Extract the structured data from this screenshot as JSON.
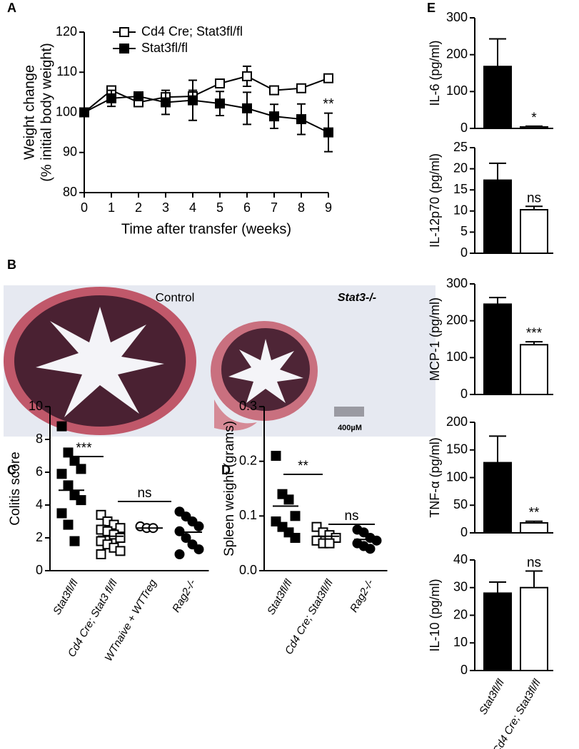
{
  "panel_labels": [
    "A",
    "B",
    "C",
    "D",
    "E"
  ],
  "image": {
    "labels": [
      "Control",
      "Stat3-/-"
    ],
    "scale_bar": "400µM"
  },
  "chart_data": [
    {
      "type": "line",
      "xlabel": "Time after transfer (weeks)",
      "ylabel": [
        "Weight change",
        "(% initial body weight)"
      ],
      "x": [
        0,
        1,
        2,
        3,
        4,
        5,
        6,
        7,
        8,
        9
      ],
      "xlim": [
        0,
        9
      ],
      "xticks": [
        0,
        1,
        2,
        3,
        4,
        5,
        6,
        7,
        8,
        9
      ],
      "ylim": [
        80,
        120
      ],
      "yticks": [
        80,
        90,
        100,
        110,
        120
      ],
      "legend": "upper left",
      "series": [
        {
          "name": "Cd4 Cre; Stat3fl/fl",
          "color": "#000000",
          "marker": "square-open",
          "values": [
            100,
            105.5,
            102.5,
            103.8,
            104,
            107.2,
            109,
            105.5,
            106,
            108.5
          ],
          "errors": [
            0,
            1,
            1,
            1,
            1.5,
            1,
            2.5,
            1,
            0.5,
            1
          ]
        },
        {
          "name": "Stat3fl/fl",
          "color": "#000000",
          "marker": "square-filled",
          "values": [
            100,
            103.5,
            104,
            102.5,
            103,
            102.2,
            101,
            99,
            98.3,
            95
          ],
          "errors": [
            0,
            2,
            1,
            3,
            5,
            3,
            4,
            3,
            3.8,
            4.8
          ]
        }
      ],
      "annotation": "**"
    },
    {
      "type": "dot",
      "ylabel": "Colitis score",
      "categories": [
        "Stat3fl/fl",
        "Cd4 Cre; Stat3 fl/fl",
        "WTnaive + WTTreg",
        "Rag2-/-"
      ],
      "values": [
        [
          8.8,
          7.2,
          6.7,
          6.2,
          5.9,
          5.2,
          4.6,
          4.3,
          3.5,
          2.8,
          1.8
        ],
        [
          3.4,
          3.0,
          2.8,
          2.6,
          2.5,
          2.4,
          2.2,
          2.0,
          1.8,
          1.6,
          1.4,
          1.2,
          1.0
        ],
        [
          2.7,
          2.6,
          2.6
        ],
        [
          3.6,
          3.3,
          3.0,
          2.7,
          2.4,
          2.0,
          1.6,
          1.3,
          1.0
        ]
      ],
      "means": [
        4.9,
        2.1,
        2.6,
        2.35
      ],
      "markers": [
        "square-filled",
        "square-open",
        "circle-open",
        "circle-filled"
      ],
      "ylim": [
        0,
        10
      ],
      "yticks": [
        0,
        2,
        4,
        6,
        8,
        10
      ],
      "annotations": [
        "***",
        "ns"
      ]
    },
    {
      "type": "dot",
      "ylabel": "Spleen weight (grams)",
      "categories": [
        "Stat3fl/fl",
        "Cd4 Cre; Stat3fl/fl",
        "Rag2-/-"
      ],
      "values": [
        [
          0.21,
          0.14,
          0.13,
          0.1,
          0.09,
          0.08,
          0.07,
          0.06
        ],
        [
          0.08,
          0.07,
          0.065,
          0.06,
          0.055,
          0.05,
          0.05
        ],
        [
          0.075,
          0.07,
          0.06,
          0.055,
          0.05,
          0.045,
          0.04
        ]
      ],
      "means": [
        0.118,
        0.063,
        0.057
      ],
      "markers": [
        "square-filled",
        "square-open",
        "circle-filled"
      ],
      "ylim": [
        0,
        0.3
      ],
      "yticks": [
        {
          "value": 0,
          "label": "0.0"
        },
        0.1,
        0.2,
        0.3
      ],
      "annotations": [
        "**",
        "ns"
      ]
    },
    {
      "type": "bar",
      "ylabel": "IL-6 (pg/ml)",
      "values": [
        168,
        4
      ],
      "errors": [
        75,
        2
      ],
      "colors": [
        "#000000",
        "#ffffff"
      ],
      "ylim": [
        0,
        300
      ],
      "yticks": [
        0,
        100,
        200,
        300
      ],
      "annotation": "*"
    },
    {
      "type": "bar",
      "ylabel": "IL-12p70 (pg/ml)",
      "values": [
        17.3,
        10.3
      ],
      "errors": [
        4,
        0.8
      ],
      "colors": [
        "#000000",
        "#ffffff"
      ],
      "ylim": [
        0,
        25
      ],
      "yticks": [
        0,
        5,
        10,
        15,
        20,
        25
      ],
      "annotation": "ns"
    },
    {
      "type": "bar",
      "ylabel": "MCP-1 (pg/ml)",
      "values": [
        245,
        135
      ],
      "errors": [
        18,
        8
      ],
      "colors": [
        "#000000",
        "#ffffff"
      ],
      "ylim": [
        0,
        300
      ],
      "yticks": [
        0,
        100,
        200,
        300
      ],
      "annotation": "***"
    },
    {
      "type": "bar",
      "ylabel": "TNF-α (pg/ml)",
      "values": [
        127,
        18
      ],
      "errors": [
        48,
        3
      ],
      "colors": [
        "#000000",
        "#ffffff"
      ],
      "ylim": [
        0,
        200
      ],
      "yticks": [
        0,
        50,
        100,
        150,
        200
      ],
      "annotation": "**"
    },
    {
      "type": "bar",
      "ylabel": "IL-10 (pg/ml)",
      "categories": [
        "Stat3fl/fl",
        "Cd4 Cre; Stat3fl/fl"
      ],
      "values": [
        28,
        30
      ],
      "errors": [
        4,
        6
      ],
      "colors": [
        "#000000",
        "#ffffff"
      ],
      "ylim": [
        0,
        40
      ],
      "yticks": [
        0,
        10,
        20,
        30,
        40
      ],
      "annotation": "ns"
    }
  ]
}
